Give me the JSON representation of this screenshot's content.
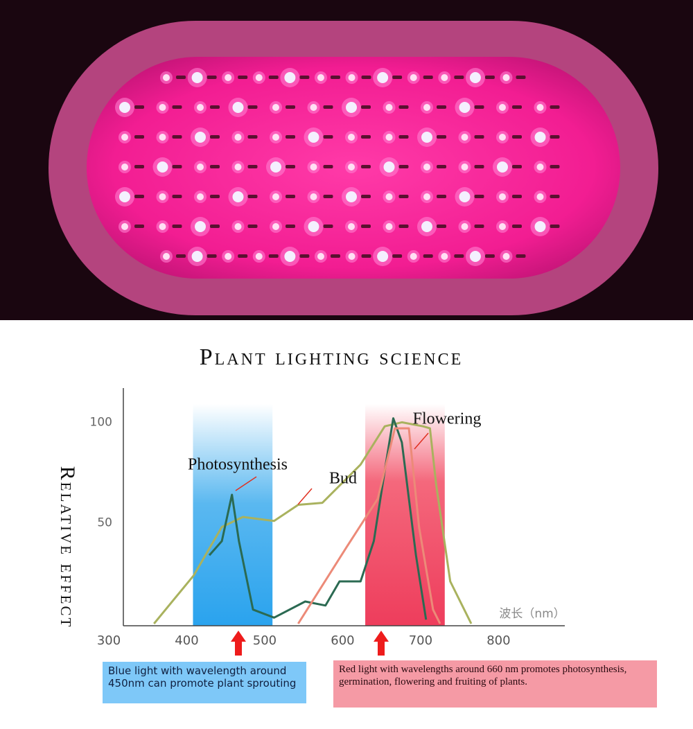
{
  "chart_data": {
    "type": "line",
    "title": "Plant lighting science",
    "ylabel": "Relative effect",
    "xlabel": "波长（nm）",
    "xlim": [
      300,
      869
    ],
    "ylim": [
      0,
      117
    ],
    "xticks": [
      300,
      400,
      500,
      600,
      700,
      800
    ],
    "yticks": [
      50,
      100
    ],
    "bands": [
      [
        392,
        494
      ],
      [
        613,
        715
      ]
    ],
    "series": [
      {
        "name": "Photosynthesis",
        "color": "#a9b25e",
        "x": [
          342,
          393,
          429,
          456,
          496,
          527,
          558,
          607,
          638,
          660,
          687,
          696,
          704,
          722,
          749
        ],
        "values": [
          0,
          24,
          48,
          53,
          51,
          59,
          60,
          79,
          98,
          100,
          98,
          97,
          69,
          21,
          0
        ]
      },
      {
        "name": "Bud",
        "color": "#2b6a52",
        "x": [
          413,
          429,
          442,
          451,
          469,
          496,
          536,
          562,
          580,
          607,
          624,
          638,
          649,
          660,
          678,
          691
        ],
        "values": [
          34,
          41,
          64,
          41,
          7,
          3,
          11,
          9,
          21,
          21,
          41,
          76,
          102,
          90,
          34,
          2
        ]
      },
      {
        "name": "Flowering",
        "color": "#ec8a78",
        "x": [
          527,
          589,
          629,
          651,
          669,
          682,
          700,
          709
        ],
        "values": [
          0,
          38,
          62,
          97,
          97,
          48,
          7,
          0
        ]
      }
    ],
    "captions": [
      "Blue light with wavelength around 450nm can promote plant sprouting",
      "Red light with wavelengths around 660 nm promotes photosynthesis, germination, flowering and fruiting of plants."
    ]
  }
}
